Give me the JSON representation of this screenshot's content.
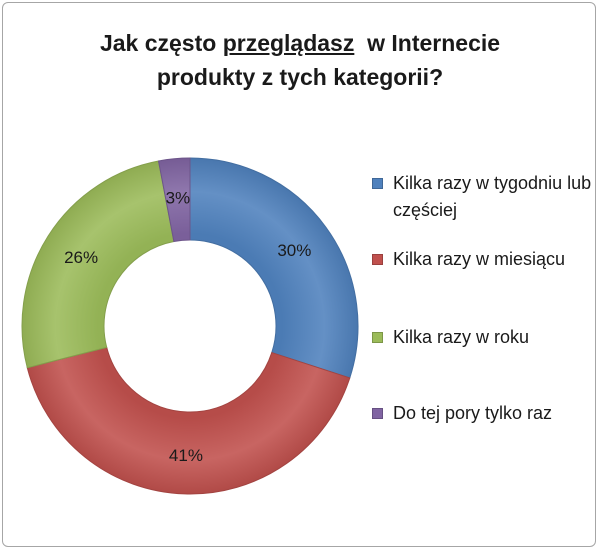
{
  "chart_data": {
    "type": "pie",
    "variant": "doughnut",
    "title_line1_before": "Jak często ",
    "title_line1_underlined": "przeglądasz",
    "title_line1_after": "  w Internecie",
    "title_line2": "produkty z tych kategorii?",
    "categories": [
      "Kilka razy w tygodniu lub częściej",
      "Kilka razy w miesiącu",
      "Kilka razy w roku",
      "Do tej pory tylko raz"
    ],
    "values": [
      30,
      41,
      26,
      3
    ],
    "labels": [
      "30%",
      "41%",
      "26%",
      "3%"
    ],
    "colors": [
      "#4f81bd",
      "#c0504d",
      "#9bbb59",
      "#8064a2"
    ],
    "legend_position": "right"
  }
}
